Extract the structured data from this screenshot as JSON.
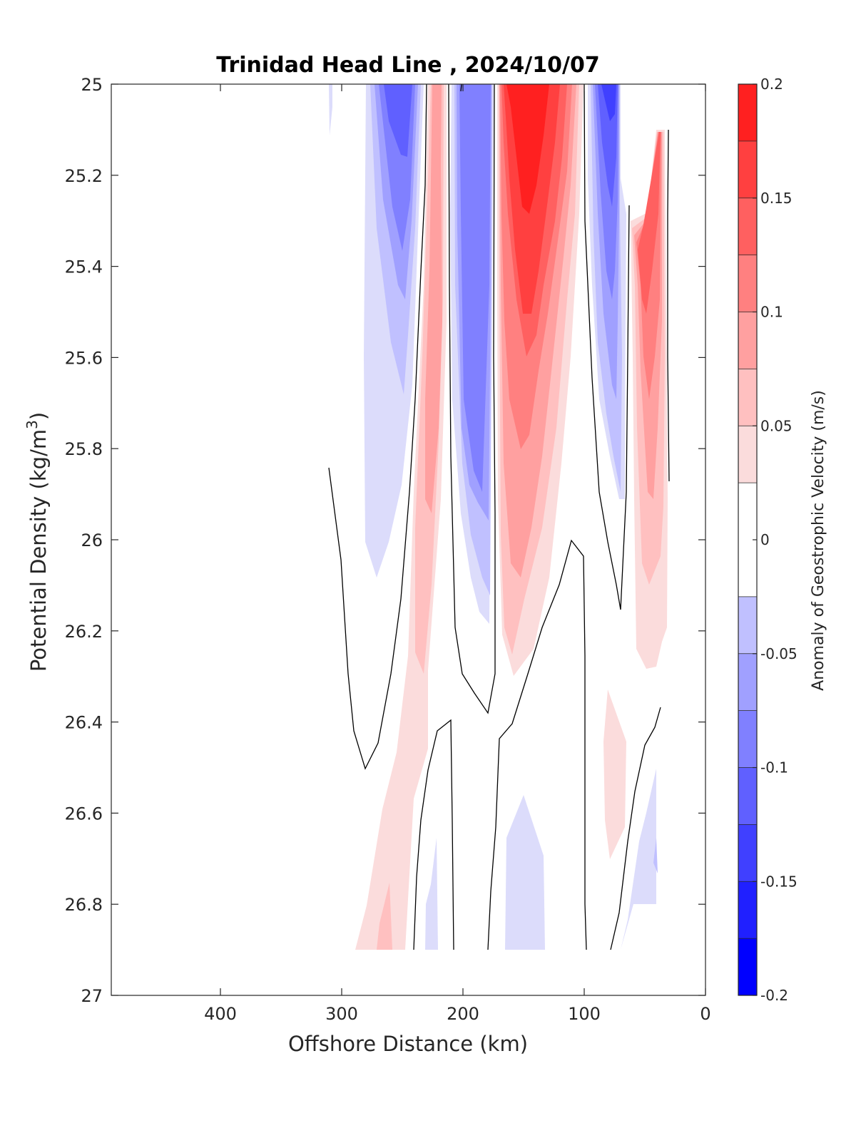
{
  "chart_data": {
    "type": "heatmap",
    "title": "Trinidad Head Line , 2024/10/07",
    "xlabel": "Offshore Distance (km)",
    "ylabel_base": "Potential Density (kg/m",
    "ylabel_sup": "3",
    "ylabel_end": ")",
    "xlim": [
      490,
      0
    ],
    "x_reversed": true,
    "ylim": [
      25,
      27
    ],
    "y_reversed": true,
    "xticks": [
      400,
      300,
      200,
      100,
      0
    ],
    "yticks": [
      25,
      25.2,
      25.4,
      25.6,
      25.8,
      26,
      26.2,
      26.4,
      26.6,
      26.8,
      27
    ],
    "colorbar": {
      "label": "Anomaly of Geostrophic Velocity (m/s)",
      "clim": [
        -0.2,
        0.2
      ],
      "ticks": [
        -0.2,
        -0.15,
        -0.1,
        -0.05,
        0,
        0.05,
        0.1,
        0.15,
        0.2
      ],
      "tick_labels": [
        "-0.2",
        "-0.15",
        "-0.1",
        "-0.05",
        "0",
        "0.05",
        "0.1",
        "0.15",
        "0.2"
      ],
      "levels": [
        -0.2,
        -0.175,
        -0.15,
        -0.125,
        -0.1,
        -0.075,
        -0.05,
        -0.025,
        0.025,
        0.05,
        0.075,
        0.1,
        0.125,
        0.15,
        0.175,
        0.2
      ],
      "colors": [
        "#0000ff",
        "#2020ff",
        "#4040ff",
        "#6060ff",
        "#8080ff",
        "#a0a0ff",
        "#c0c0ff",
        "#dcdcfb",
        "#ffffff",
        "#fbdcdc",
        "#ffc0c0",
        "#ffa0a0",
        "#ff8080",
        "#ff6060",
        "#ff4040",
        "#ff2020",
        "#ff0000"
      ]
    },
    "contour_level_shown": 0,
    "features": [
      {
        "name": "offshore-weak-negative",
        "kind": "neg",
        "center_x": 310,
        "top": 25.0,
        "bottom": 25.12,
        "peak": -0.04
      },
      {
        "name": "negative-core-west",
        "kind": "neg",
        "center_x": 255,
        "top": 25.0,
        "bottom": 26.08,
        "peak": -0.13
      },
      {
        "name": "positive-band-west",
        "kind": "pos",
        "center_x": 225,
        "top": 25.0,
        "bottom": 26.9,
        "peak": 0.09
      },
      {
        "name": "negative-core-central",
        "kind": "neg",
        "center_x": 190,
        "top": 25.0,
        "bottom": 26.18,
        "peak": -0.12
      },
      {
        "name": "positive-core-central",
        "kind": "pos",
        "center_x": 150,
        "top": 25.0,
        "bottom": 26.25,
        "peak": 0.19
      },
      {
        "name": "negative-core-east",
        "kind": "neg",
        "center_x": 80,
        "top": 25.0,
        "bottom": 25.9,
        "peak": -0.14
      },
      {
        "name": "positive-core-east",
        "kind": "pos",
        "center_x": 45,
        "top": 25.1,
        "bottom": 26.28,
        "peak": 0.16
      },
      {
        "name": "deep-positive-east",
        "kind": "pos",
        "center_x": 82,
        "top": 26.33,
        "bottom": 26.7,
        "peak": 0.04
      },
      {
        "name": "deep-negative-central",
        "kind": "neg",
        "center_x": 148,
        "top": 26.55,
        "bottom": 26.9,
        "peak": -0.04
      },
      {
        "name": "deep-negative-east",
        "kind": "neg",
        "center_x": 55,
        "top": 26.5,
        "bottom": 26.8,
        "peak": -0.04
      },
      {
        "name": "deep-negative-west",
        "kind": "neg",
        "center_x": 222,
        "top": 26.66,
        "bottom": 26.9,
        "peak": -0.04
      }
    ]
  }
}
